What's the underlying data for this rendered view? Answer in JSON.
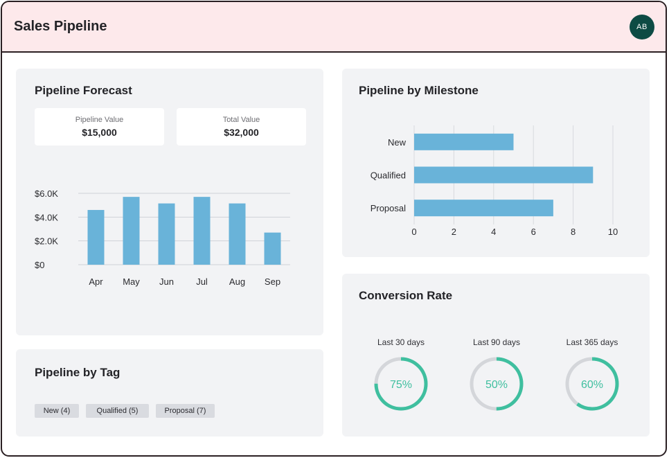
{
  "app": {
    "title": "Sales Pipeline",
    "avatar_initials": "AB",
    "avatar_color": "#0d4b44",
    "header_bg": "#fde9eb"
  },
  "forecast": {
    "title": "Pipeline Forecast",
    "pipeline_value_label": "Pipeline Value",
    "pipeline_value": "$15,000",
    "total_value_label": "Total Value",
    "total_value": "$32,000"
  },
  "milestone": {
    "title": "Pipeline by Milestone"
  },
  "tag": {
    "title": "Pipeline by Tag",
    "chips": [
      "New (4)",
      "Qualified (5)",
      "Proposal (7)"
    ]
  },
  "conversion": {
    "title": "Conversion Rate",
    "items": [
      {
        "label": "Last 30 days",
        "value": 75,
        "text": "75%"
      },
      {
        "label": "Last 90 days",
        "value": 50,
        "text": "50%"
      },
      {
        "label": "Last 365 days",
        "value": 60,
        "text": "60%"
      }
    ],
    "ring_color": "#3fbf9f",
    "ring_bg": "#d4d6da"
  },
  "chart_data": [
    {
      "type": "bar",
      "title": "Pipeline Forecast",
      "categories": [
        "Apr",
        "May",
        "Jun",
        "Jul",
        "Aug",
        "Sep"
      ],
      "values": [
        4600,
        5700,
        5150,
        5700,
        5150,
        2700
      ],
      "ylim": [
        0,
        6000
      ],
      "yticks": [
        0,
        2000,
        4000,
        6000
      ],
      "ytick_labels": [
        "$0",
        "$2.0K",
        "$4.0K",
        "$6.0K"
      ],
      "grid": true,
      "color": "#69b3d9"
    },
    {
      "type": "bar",
      "orientation": "horizontal",
      "title": "Pipeline by Milestone",
      "categories": [
        "New",
        "Qualified",
        "Proposal"
      ],
      "values": [
        5,
        9,
        7
      ],
      "xlim": [
        0,
        10
      ],
      "xticks": [
        0,
        2,
        4,
        6,
        8,
        10
      ],
      "xtick_labels": [
        "0",
        "2",
        "4",
        "6",
        "8",
        "10"
      ],
      "grid": true,
      "color": "#69b3d9"
    }
  ]
}
